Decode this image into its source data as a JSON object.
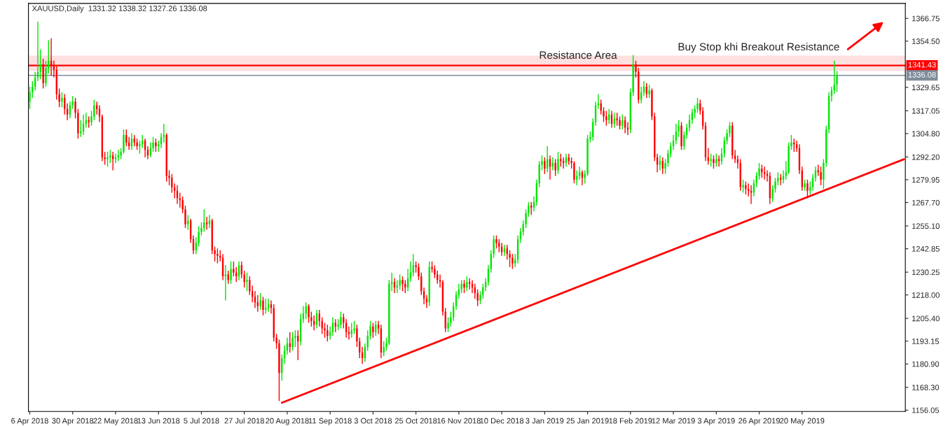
{
  "chart_data": {
    "type": "candlestick",
    "title": "XAUUSD,Daily  1331.32 1338.32 1327.26 1336.08",
    "categories": [
      "6 Apr 2018",
      null,
      null,
      null,
      null,
      null,
      null,
      null,
      null,
      null,
      null,
      null,
      null,
      null,
      null,
      null,
      "30 Apr 2018",
      null,
      null,
      null,
      null,
      null,
      null,
      null,
      null,
      null,
      null,
      null,
      null,
      null,
      null,
      null,
      "22 May 2018",
      null,
      null,
      null,
      null,
      null,
      null,
      null,
      null,
      null,
      null,
      null,
      null,
      null,
      null,
      null,
      "13 Jun 2018",
      null,
      null,
      null,
      null,
      null,
      null,
      null,
      null,
      null,
      null,
      null,
      null,
      null,
      null,
      null,
      "5 Jul 2018",
      null,
      null,
      null,
      null,
      null,
      null,
      null,
      null,
      null,
      null,
      null,
      null,
      null,
      null,
      null,
      "27 Jul 2018",
      null,
      null,
      null,
      null,
      null,
      null,
      null,
      null,
      null,
      null,
      null,
      null,
      null,
      null,
      null,
      "20 Aug 2018",
      null,
      null,
      null,
      null,
      null,
      null,
      null,
      null,
      null,
      null,
      null,
      null,
      null,
      null,
      null,
      "11 Sep 2018",
      null,
      null,
      null,
      null,
      null,
      null,
      null,
      null,
      null,
      null,
      null,
      null,
      null,
      null,
      null,
      "3 Oct 2018",
      null,
      null,
      null,
      null,
      null,
      null,
      null,
      null,
      null,
      null,
      null,
      null,
      null,
      null,
      null,
      "25 Oct 2018",
      null,
      null,
      null,
      null,
      null,
      null,
      null,
      null,
      null,
      null,
      null,
      null,
      null,
      null,
      null,
      "16 Nov 2018",
      null,
      null,
      null,
      null,
      null,
      null,
      null,
      null,
      null,
      null,
      null,
      null,
      null,
      null,
      null,
      "10 Dec 2018",
      null,
      null,
      null,
      null,
      null,
      null,
      null,
      null,
      null,
      null,
      null,
      null,
      null,
      null,
      null,
      "3 Jan 2019",
      null,
      null,
      null,
      null,
      null,
      null,
      null,
      null,
      null,
      null,
      null,
      null,
      null,
      null,
      null,
      "25 Jan 2019",
      null,
      null,
      null,
      null,
      null,
      null,
      null,
      null,
      null,
      null,
      null,
      null,
      null,
      null,
      null,
      "18 Feb 2019",
      null,
      null,
      null,
      null,
      null,
      null,
      null,
      null,
      null,
      null,
      null,
      null,
      null,
      null,
      null,
      "12 Mar 2019",
      null,
      null,
      null,
      null,
      null,
      null,
      null,
      null,
      null,
      null,
      null,
      null,
      null,
      null,
      null,
      "3 Apr 2019",
      null,
      null,
      null,
      null,
      null,
      null,
      null,
      null,
      null,
      null,
      null,
      null,
      null,
      null,
      null,
      "26 Apr 2019",
      null,
      null,
      null,
      null,
      null,
      null,
      null,
      null,
      null,
      null,
      null,
      null,
      null,
      null,
      null,
      "20 May 2019",
      null,
      null,
      null,
      null,
      null,
      null,
      null,
      null,
      null,
      null,
      null,
      null,
      null,
      null,
      null,
      null,
      null,
      null,
      null,
      null,
      null,
      null,
      null,
      null,
      null,
      null,
      null,
      null,
      null,
      null,
      null,
      null,
      null,
      null,
      null,
      null,
      null,
      null
    ],
    "ohlc": [
      [
        1322,
        1330,
        1318,
        1327
      ],
      [
        1327,
        1333,
        1324,
        1330
      ],
      [
        1330,
        1338,
        1328,
        1335
      ],
      [
        1335,
        1365,
        1333,
        1338
      ],
      [
        1338,
        1350,
        1334,
        1342
      ],
      [
        1342,
        1345,
        1329,
        1332
      ],
      [
        1332,
        1344,
        1330,
        1340
      ],
      [
        1340,
        1355,
        1337,
        1344
      ],
      [
        1344,
        1356,
        1336,
        1341
      ],
      [
        1341,
        1344,
        1335,
        1339
      ],
      [
        1339,
        1341,
        1323,
        1326
      ],
      [
        1326,
        1329,
        1319,
        1322
      ],
      [
        1322,
        1327,
        1319,
        1324
      ],
      [
        1324,
        1326,
        1315,
        1318
      ],
      [
        1318,
        1321,
        1312,
        1315
      ],
      [
        1315,
        1322,
        1313,
        1320
      ],
      [
        1320,
        1325,
        1318,
        1322
      ],
      [
        1322,
        1324,
        1313,
        1316
      ],
      [
        1316,
        1318,
        1302,
        1305
      ],
      [
        1305,
        1312,
        1303,
        1306
      ],
      [
        1306,
        1315,
        1304,
        1310
      ],
      [
        1310,
        1316,
        1308,
        1312
      ],
      [
        1312,
        1314,
        1308,
        1311
      ],
      [
        1311,
        1317,
        1309,
        1314
      ],
      [
        1314,
        1323,
        1312,
        1320
      ],
      [
        1320,
        1322,
        1315,
        1318
      ],
      [
        1318,
        1320,
        1311,
        1314
      ],
      [
        1314,
        1315,
        1290,
        1292
      ],
      [
        1292,
        1295,
        1288,
        1291
      ],
      [
        1291,
        1295,
        1287,
        1292
      ],
      [
        1292,
        1296,
        1289,
        1293
      ],
      [
        1293,
        1295,
        1285,
        1291
      ],
      [
        1291,
        1294,
        1289,
        1292
      ],
      [
        1292,
        1296,
        1290,
        1293
      ],
      [
        1293,
        1297,
        1291,
        1295
      ],
      [
        1295,
        1307,
        1294,
        1304
      ],
      [
        1304,
        1307,
        1298,
        1300
      ],
      [
        1300,
        1303,
        1296,
        1298
      ],
      [
        1298,
        1305,
        1296,
        1302
      ],
      [
        1302,
        1304,
        1298,
        1300
      ],
      [
        1300,
        1302,
        1296,
        1298
      ],
      [
        1298,
        1301,
        1294,
        1299
      ],
      [
        1299,
        1304,
        1297,
        1301
      ],
      [
        1301,
        1302,
        1292,
        1296
      ],
      [
        1296,
        1298,
        1291,
        1293
      ],
      [
        1293,
        1300,
        1292,
        1297
      ],
      [
        1297,
        1303,
        1295,
        1300
      ],
      [
        1300,
        1302,
        1295,
        1298
      ],
      [
        1298,
        1301,
        1295,
        1299
      ],
      [
        1299,
        1305,
        1297,
        1303
      ],
      [
        1303,
        1310,
        1300,
        1304
      ],
      [
        1304,
        1305,
        1279,
        1282
      ],
      [
        1282,
        1285,
        1277,
        1281
      ],
      [
        1281,
        1283,
        1273,
        1276
      ],
      [
        1276,
        1278,
        1270,
        1274
      ],
      [
        1274,
        1277,
        1267,
        1270
      ],
      [
        1270,
        1273,
        1265,
        1269
      ],
      [
        1269,
        1271,
        1262,
        1264
      ],
      [
        1264,
        1266,
        1254,
        1256
      ],
      [
        1256,
        1261,
        1253,
        1258
      ],
      [
        1258,
        1259,
        1246,
        1248
      ],
      [
        1248,
        1250,
        1240,
        1242
      ],
      [
        1242,
        1249,
        1240,
        1246
      ],
      [
        1246,
        1255,
        1244,
        1252
      ],
      [
        1252,
        1257,
        1250,
        1254
      ],
      [
        1254,
        1264,
        1252,
        1257
      ],
      [
        1257,
        1260,
        1253,
        1256
      ],
      [
        1256,
        1261,
        1254,
        1258
      ],
      [
        1258,
        1259,
        1240,
        1242
      ],
      [
        1242,
        1244,
        1236,
        1240
      ],
      [
        1240,
        1243,
        1235,
        1239
      ],
      [
        1239,
        1242,
        1236,
        1238
      ],
      [
        1238,
        1240,
        1226,
        1228
      ],
      [
        1228,
        1234,
        1215,
        1229
      ],
      [
        1229,
        1231,
        1224,
        1226
      ],
      [
        1226,
        1236,
        1224,
        1232
      ],
      [
        1232,
        1236,
        1228,
        1230
      ],
      [
        1230,
        1233,
        1225,
        1228
      ],
      [
        1228,
        1236,
        1226,
        1234
      ],
      [
        1234,
        1236,
        1227,
        1229
      ],
      [
        1229,
        1231,
        1222,
        1225
      ],
      [
        1225,
        1230,
        1220,
        1226
      ],
      [
        1226,
        1228,
        1218,
        1220
      ],
      [
        1220,
        1223,
        1214,
        1217
      ],
      [
        1217,
        1220,
        1211,
        1214
      ],
      [
        1214,
        1218,
        1209,
        1212
      ],
      [
        1212,
        1219,
        1210,
        1215
      ],
      [
        1215,
        1217,
        1207,
        1210
      ],
      [
        1210,
        1216,
        1208,
        1211
      ],
      [
        1211,
        1216,
        1209,
        1213
      ],
      [
        1213,
        1215,
        1208,
        1211
      ],
      [
        1211,
        1213,
        1193,
        1195
      ],
      [
        1195,
        1197,
        1189,
        1192
      ],
      [
        1192,
        1194,
        1161,
        1176
      ],
      [
        1176,
        1186,
        1172,
        1184
      ],
      [
        1184,
        1191,
        1181,
        1188
      ],
      [
        1188,
        1195,
        1186,
        1192
      ],
      [
        1192,
        1198,
        1187,
        1190
      ],
      [
        1190,
        1198,
        1188,
        1195
      ],
      [
        1195,
        1199,
        1190,
        1196
      ],
      [
        1196,
        1199,
        1183,
        1193
      ],
      [
        1193,
        1208,
        1191,
        1205
      ],
      [
        1205,
        1212,
        1203,
        1208
      ],
      [
        1208,
        1214,
        1205,
        1212
      ],
      [
        1212,
        1213,
        1203,
        1206
      ],
      [
        1206,
        1209,
        1201,
        1204
      ],
      [
        1204,
        1207,
        1199,
        1202
      ],
      [
        1202,
        1210,
        1200,
        1208
      ],
      [
        1208,
        1210,
        1201,
        1204
      ],
      [
        1204,
        1206,
        1197,
        1200
      ],
      [
        1200,
        1203,
        1195,
        1199
      ],
      [
        1199,
        1202,
        1193,
        1196
      ],
      [
        1196,
        1201,
        1194,
        1198
      ],
      [
        1198,
        1206,
        1196,
        1203
      ],
      [
        1203,
        1205,
        1198,
        1201
      ],
      [
        1201,
        1205,
        1199,
        1202
      ],
      [
        1202,
        1209,
        1200,
        1206
      ],
      [
        1206,
        1208,
        1200,
        1203
      ],
      [
        1203,
        1205,
        1195,
        1198
      ],
      [
        1198,
        1201,
        1194,
        1197
      ],
      [
        1197,
        1203,
        1195,
        1199
      ],
      [
        1199,
        1204,
        1197,
        1200
      ],
      [
        1200,
        1202,
        1190,
        1193
      ],
      [
        1193,
        1195,
        1184,
        1187
      ],
      [
        1187,
        1190,
        1181,
        1184
      ],
      [
        1184,
        1192,
        1182,
        1190
      ],
      [
        1190,
        1199,
        1188,
        1196
      ],
      [
        1196,
        1204,
        1194,
        1201
      ],
      [
        1201,
        1203,
        1195,
        1198
      ],
      [
        1198,
        1204,
        1196,
        1202
      ],
      [
        1202,
        1204,
        1197,
        1200
      ],
      [
        1200,
        1202,
        1184,
        1187
      ],
      [
        1187,
        1193,
        1185,
        1190
      ],
      [
        1190,
        1195,
        1188,
        1192
      ],
      [
        1192,
        1226,
        1191,
        1224
      ],
      [
        1224,
        1230,
        1220,
        1225
      ],
      [
        1225,
        1227,
        1219,
        1222
      ],
      [
        1222,
        1226,
        1219,
        1223
      ],
      [
        1223,
        1229,
        1221,
        1226
      ],
      [
        1226,
        1228,
        1220,
        1224
      ],
      [
        1224,
        1226,
        1219,
        1222
      ],
      [
        1222,
        1232,
        1220,
        1227
      ],
      [
        1227,
        1236,
        1225,
        1230
      ],
      [
        1230,
        1240,
        1228,
        1234
      ],
      [
        1234,
        1236,
        1230,
        1233
      ],
      [
        1233,
        1235,
        1226,
        1228
      ],
      [
        1228,
        1230,
        1218,
        1220
      ],
      [
        1220,
        1222,
        1213,
        1216
      ],
      [
        1216,
        1218,
        1211,
        1214
      ],
      [
        1214,
        1236,
        1212,
        1233
      ],
      [
        1233,
        1236,
        1230,
        1232
      ],
      [
        1232,
        1234,
        1227,
        1229
      ],
      [
        1229,
        1231,
        1224,
        1226
      ],
      [
        1226,
        1229,
        1222,
        1225
      ],
      [
        1225,
        1226,
        1207,
        1209
      ],
      [
        1209,
        1211,
        1198,
        1200
      ],
      [
        1200,
        1206,
        1198,
        1203
      ],
      [
        1203,
        1209,
        1201,
        1206
      ],
      [
        1206,
        1214,
        1204,
        1212
      ],
      [
        1212,
        1220,
        1210,
        1218
      ],
      [
        1218,
        1224,
        1216,
        1221
      ],
      [
        1221,
        1226,
        1219,
        1224
      ],
      [
        1224,
        1226,
        1219,
        1222
      ],
      [
        1222,
        1228,
        1220,
        1225
      ],
      [
        1225,
        1227,
        1221,
        1224
      ],
      [
        1224,
        1226,
        1219,
        1222
      ],
      [
        1222,
        1224,
        1216,
        1219
      ],
      [
        1219,
        1221,
        1212,
        1215
      ],
      [
        1215,
        1220,
        1213,
        1218
      ],
      [
        1218,
        1224,
        1216,
        1222
      ],
      [
        1222,
        1227,
        1220,
        1225
      ],
      [
        1225,
        1234,
        1223,
        1232
      ],
      [
        1232,
        1242,
        1230,
        1240
      ],
      [
        1240,
        1250,
        1238,
        1248
      ],
      [
        1248,
        1250,
        1243,
        1246
      ],
      [
        1246,
        1248,
        1241,
        1244
      ],
      [
        1244,
        1246,
        1239,
        1241
      ],
      [
        1241,
        1245,
        1239,
        1243
      ],
      [
        1243,
        1245,
        1237,
        1240
      ],
      [
        1240,
        1242,
        1233,
        1238
      ],
      [
        1238,
        1240,
        1232,
        1235
      ],
      [
        1235,
        1240,
        1233,
        1237
      ],
      [
        1237,
        1250,
        1235,
        1248
      ],
      [
        1248,
        1254,
        1246,
        1252
      ],
      [
        1252,
        1258,
        1250,
        1256
      ],
      [
        1256,
        1264,
        1254,
        1262
      ],
      [
        1262,
        1268,
        1260,
        1266
      ],
      [
        1266,
        1268,
        1261,
        1265
      ],
      [
        1265,
        1271,
        1263,
        1268
      ],
      [
        1268,
        1280,
        1266,
        1278
      ],
      [
        1278,
        1290,
        1276,
        1288
      ],
      [
        1288,
        1293,
        1285,
        1290
      ],
      [
        1290,
        1292,
        1283,
        1286
      ],
      [
        1286,
        1298,
        1284,
        1291
      ],
      [
        1291,
        1293,
        1280,
        1287
      ],
      [
        1287,
        1292,
        1285,
        1289
      ],
      [
        1289,
        1291,
        1282,
        1285
      ],
      [
        1285,
        1295,
        1283,
        1291
      ],
      [
        1291,
        1294,
        1287,
        1290
      ],
      [
        1290,
        1292,
        1286,
        1289
      ],
      [
        1289,
        1294,
        1287,
        1292
      ],
      [
        1292,
        1294,
        1288,
        1290
      ],
      [
        1290,
        1292,
        1286,
        1289
      ],
      [
        1289,
        1290,
        1278,
        1280
      ],
      [
        1280,
        1285,
        1277,
        1282
      ],
      [
        1282,
        1287,
        1280,
        1284
      ],
      [
        1284,
        1285,
        1277,
        1281
      ],
      [
        1281,
        1285,
        1278,
        1283
      ],
      [
        1283,
        1304,
        1282,
        1302
      ],
      [
        1302,
        1306,
        1300,
        1303
      ],
      [
        1303,
        1313,
        1301,
        1311
      ],
      [
        1311,
        1322,
        1309,
        1320
      ],
      [
        1320,
        1326,
        1318,
        1321
      ],
      [
        1321,
        1323,
        1315,
        1317
      ],
      [
        1317,
        1319,
        1311,
        1314
      ],
      [
        1314,
        1317,
        1309,
        1312
      ],
      [
        1312,
        1318,
        1310,
        1315
      ],
      [
        1315,
        1317,
        1308,
        1310
      ],
      [
        1310,
        1316,
        1308,
        1313
      ],
      [
        1313,
        1316,
        1309,
        1312
      ],
      [
        1312,
        1314,
        1307,
        1309
      ],
      [
        1309,
        1315,
        1307,
        1312
      ],
      [
        1312,
        1314,
        1305,
        1308
      ],
      [
        1308,
        1311,
        1304,
        1307
      ],
      [
        1307,
        1329,
        1305,
        1327
      ],
      [
        1327,
        1347,
        1325,
        1342
      ],
      [
        1342,
        1344,
        1335,
        1338
      ],
      [
        1338,
        1340,
        1321,
        1323
      ],
      [
        1323,
        1330,
        1321,
        1327
      ],
      [
        1327,
        1333,
        1325,
        1330
      ],
      [
        1330,
        1332,
        1324,
        1326
      ],
      [
        1326,
        1331,
        1324,
        1328
      ],
      [
        1328,
        1329,
        1312,
        1314
      ],
      [
        1314,
        1316,
        1290,
        1292
      ],
      [
        1292,
        1294,
        1284,
        1288
      ],
      [
        1288,
        1293,
        1285,
        1290
      ],
      [
        1290,
        1292,
        1283,
        1286
      ],
      [
        1286,
        1291,
        1283,
        1289
      ],
      [
        1289,
        1296,
        1287,
        1294
      ],
      [
        1294,
        1300,
        1292,
        1298
      ],
      [
        1298,
        1304,
        1296,
        1301
      ],
      [
        1301,
        1310,
        1299,
        1306
      ],
      [
        1306,
        1312,
        1303,
        1309
      ],
      [
        1309,
        1311,
        1296,
        1298
      ],
      [
        1298,
        1306,
        1296,
        1304
      ],
      [
        1304,
        1310,
        1302,
        1308
      ],
      [
        1308,
        1315,
        1306,
        1312
      ],
      [
        1312,
        1318,
        1310,
        1316
      ],
      [
        1316,
        1320,
        1313,
        1318
      ],
      [
        1318,
        1324,
        1316,
        1321
      ],
      [
        1321,
        1323,
        1315,
        1317
      ],
      [
        1317,
        1319,
        1307,
        1309
      ],
      [
        1309,
        1311,
        1290,
        1292
      ],
      [
        1292,
        1297,
        1288,
        1290
      ],
      [
        1290,
        1294,
        1287,
        1291
      ],
      [
        1291,
        1293,
        1286,
        1289
      ],
      [
        1289,
        1294,
        1287,
        1291
      ],
      [
        1291,
        1293,
        1287,
        1290
      ],
      [
        1290,
        1297,
        1288,
        1294
      ],
      [
        1294,
        1303,
        1292,
        1301
      ],
      [
        1301,
        1307,
        1299,
        1305
      ],
      [
        1305,
        1311,
        1303,
        1309
      ],
      [
        1309,
        1311,
        1291,
        1293
      ],
      [
        1293,
        1296,
        1289,
        1291
      ],
      [
        1291,
        1293,
        1286,
        1289
      ],
      [
        1289,
        1291,
        1274,
        1276
      ],
      [
        1276,
        1280,
        1273,
        1277
      ],
      [
        1277,
        1279,
        1272,
        1275
      ],
      [
        1275,
        1278,
        1271,
        1274
      ],
      [
        1274,
        1277,
        1267,
        1273
      ],
      [
        1273,
        1280,
        1271,
        1278
      ],
      [
        1278,
        1284,
        1276,
        1282
      ],
      [
        1282,
        1289,
        1280,
        1286
      ],
      [
        1286,
        1288,
        1281,
        1284
      ],
      [
        1284,
        1287,
        1280,
        1283
      ],
      [
        1283,
        1285,
        1279,
        1282
      ],
      [
        1282,
        1284,
        1267,
        1270
      ],
      [
        1270,
        1277,
        1268,
        1275
      ],
      [
        1275,
        1281,
        1273,
        1279
      ],
      [
        1279,
        1284,
        1277,
        1281
      ],
      [
        1281,
        1283,
        1277,
        1280
      ],
      [
        1280,
        1285,
        1278,
        1282
      ],
      [
        1282,
        1290,
        1280,
        1284
      ],
      [
        1284,
        1300,
        1283,
        1298
      ],
      [
        1298,
        1304,
        1296,
        1300
      ],
      [
        1300,
        1302,
        1295,
        1299
      ],
      [
        1299,
        1301,
        1295,
        1297
      ],
      [
        1297,
        1299,
        1283,
        1285
      ],
      [
        1285,
        1287,
        1274,
        1276
      ],
      [
        1276,
        1280,
        1274,
        1278
      ],
      [
        1278,
        1280,
        1270,
        1274
      ],
      [
        1274,
        1279,
        1272,
        1276
      ],
      [
        1276,
        1283,
        1274,
        1281
      ],
      [
        1281,
        1287,
        1279,
        1285
      ],
      [
        1285,
        1288,
        1282,
        1284
      ],
      [
        1284,
        1287,
        1277,
        1280
      ],
      [
        1280,
        1291,
        1275,
        1289
      ],
      [
        1289,
        1309,
        1287,
        1307
      ],
      [
        1307,
        1327,
        1305,
        1325
      ],
      [
        1325,
        1330,
        1322,
        1328
      ],
      [
        1328,
        1344,
        1326,
        1331
      ],
      [
        1331.32,
        1338.32,
        1327.26,
        1336.08
      ],
      null,
      null,
      null,
      null,
      null,
      null,
      null,
      null,
      null,
      null,
      null,
      null,
      null,
      null,
      null,
      null,
      null,
      null,
      null,
      null,
      null,
      null,
      null,
      null,
      null
    ],
    "series": [
      {
        "type": "line",
        "color": "#ff0000",
        "values": [
          null,
          null,
          null,
          null,
          null,
          null,
          null,
          null,
          null,
          null,
          null,
          null,
          null,
          null,
          null,
          null,
          null,
          null,
          null,
          null,
          null,
          null,
          null,
          null,
          null,
          null,
          null,
          null,
          null,
          null,
          null,
          null,
          null,
          null,
          null,
          null,
          null,
          null,
          null,
          null,
          null,
          null,
          null,
          null,
          null,
          null,
          null,
          null,
          null,
          null,
          null,
          null,
          null,
          null,
          null,
          null,
          null,
          null,
          null,
          null,
          null,
          null,
          null,
          null,
          null,
          null,
          null,
          null,
          null,
          null,
          null,
          null,
          null,
          null,
          null,
          null,
          null,
          null,
          null,
          null,
          null,
          null,
          null,
          null,
          null,
          null,
          null,
          null,
          null,
          null,
          null,
          null,
          null,
          null,
          1160,
          null,
          null,
          null,
          null,
          null,
          null,
          null,
          null,
          null,
          null,
          null,
          null,
          null,
          null,
          null,
          null,
          null,
          null,
          null,
          null,
          null,
          null,
          null,
          null,
          null,
          null,
          null,
          null,
          null,
          null,
          null,
          null,
          null,
          null,
          null,
          null,
          null,
          null,
          null,
          null,
          null,
          null,
          null,
          null,
          null,
          null,
          null,
          null,
          null,
          null,
          null,
          null,
          null,
          null,
          null,
          null,
          null,
          null,
          null,
          null,
          null,
          null,
          null,
          null,
          null,
          null,
          null,
          null,
          null,
          null,
          null,
          null,
          null,
          null,
          null,
          null,
          null,
          null,
          null,
          null,
          null,
          null,
          null,
          null,
          null,
          null,
          null,
          null,
          null,
          null,
          null,
          null,
          null,
          null,
          null,
          null,
          null,
          null,
          null,
          null,
          null,
          null,
          null,
          null,
          null,
          null,
          null,
          null,
          null,
          null,
          null,
          null,
          null,
          null,
          null,
          null,
          null,
          null,
          null,
          null,
          null,
          null,
          null,
          null,
          null,
          null,
          null,
          null,
          null,
          null,
          null,
          null,
          null,
          null,
          null,
          null,
          null,
          null,
          null,
          null,
          null,
          null,
          null,
          null,
          null,
          null,
          null,
          null,
          null,
          null,
          null,
          null,
          null,
          null,
          null,
          null,
          null,
          null,
          null,
          null,
          null,
          null,
          null,
          null,
          null,
          null,
          null,
          null,
          null,
          null,
          null,
          null,
          null,
          null,
          null,
          null,
          null,
          null,
          null,
          null,
          null,
          null,
          null,
          null,
          null,
          null,
          null,
          null,
          null,
          null,
          null,
          null,
          null,
          null,
          null,
          null,
          null,
          null,
          null,
          null,
          null,
          null,
          null,
          null,
          null,
          null,
          null,
          null,
          null,
          null,
          null,
          null,
          null,
          null,
          null,
          null,
          null,
          null,
          null,
          null,
          null,
          null,
          null,
          null,
          null,
          null,
          null,
          null,
          null,
          null,
          null,
          1291
        ]
      }
    ],
    "ylim": [
      1155.3,
      1374.8
    ],
    "yticks": [
      {
        "value": 1156.05,
        "label": "1156.05"
      },
      {
        "value": 1168.3,
        "label": "1168.30"
      },
      {
        "value": 1180.9,
        "label": "1180.90"
      },
      {
        "value": 1193.15,
        "label": "1193.15"
      },
      {
        "value": 1205.4,
        "label": "1205.40"
      },
      {
        "value": 1218.0,
        "label": "1218.00"
      },
      {
        "value": 1230.25,
        "label": "1230.25"
      },
      {
        "value": 1242.85,
        "label": "1242.85"
      },
      {
        "value": 1255.1,
        "label": "1255.10"
      },
      {
        "value": 1267.7,
        "label": "1267.70"
      },
      {
        "value": 1279.95,
        "label": "1279.95"
      },
      {
        "value": 1292.2,
        "label": "1292.20"
      },
      {
        "value": 1304.8,
        "label": "1304.80"
      },
      {
        "value": 1317.05,
        "label": "1317.05"
      },
      {
        "value": 1329.65,
        "label": "1329.65"
      },
      {
        "value": 1354.5,
        "label": "1354.50"
      },
      {
        "value": 1366.75,
        "label": "1366.75"
      }
    ],
    "ref_lines": [
      {
        "axis": "y",
        "value": 1341.43,
        "label": "1341.43",
        "color": "#ff0000"
      },
      {
        "axis": "y",
        "value": 1336.08,
        "label": "1336.08",
        "color": "#7f8c99"
      }
    ],
    "bands": [
      {
        "axis": "y",
        "from": 1338.4,
        "to": 1346.7,
        "color": "#ffe0e0"
      }
    ],
    "annotations": [
      "Resistance Area",
      "Buy Stop khi Breakout Resistance"
    ],
    "grid": false,
    "legend": false
  }
}
